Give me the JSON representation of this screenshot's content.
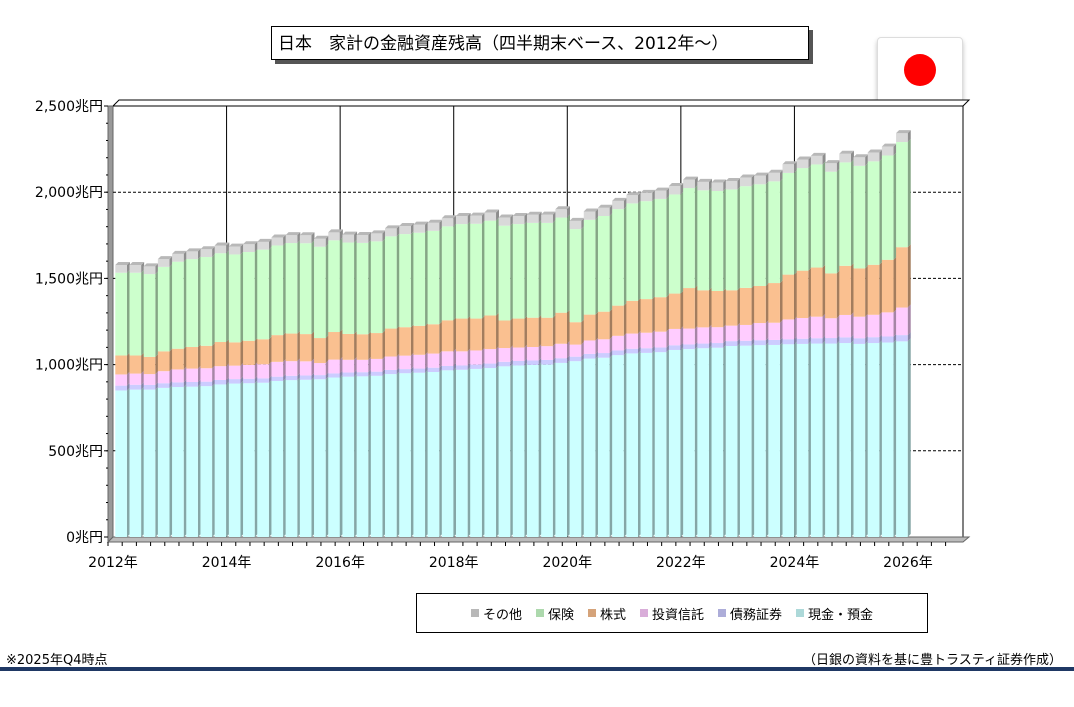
{
  "title": "日本　家計の金融資産残高（四半期末ベース、2012年～）",
  "note_left": "※2025年Q4時点",
  "note_right": "（日銀の資料を基に豊トラスティ証券作成）",
  "flag_icon": "japan-flag-icon",
  "chart_data": {
    "type": "bar",
    "stacked": true,
    "grid": true,
    "legend_position": "bottom",
    "y_ticks": [
      "0兆円",
      "500兆円",
      "1,000兆円",
      "1,500兆円",
      "2,000兆円",
      "2,500兆円"
    ],
    "ylim": [
      0,
      2500
    ],
    "x_ticks": [
      "2012年",
      "2014年",
      "2016年",
      "2018年",
      "2020年",
      "2022年",
      "2024年",
      "2026年"
    ],
    "categories": [
      "2012Q1",
      "2012Q2",
      "2012Q3",
      "2012Q4",
      "2013Q1",
      "2013Q2",
      "2013Q3",
      "2013Q4",
      "2014Q1",
      "2014Q2",
      "2014Q3",
      "2014Q4",
      "2015Q1",
      "2015Q2",
      "2015Q3",
      "2015Q4",
      "2016Q1",
      "2016Q2",
      "2016Q3",
      "2016Q4",
      "2017Q1",
      "2017Q2",
      "2017Q3",
      "2017Q4",
      "2018Q1",
      "2018Q2",
      "2018Q3",
      "2018Q4",
      "2019Q1",
      "2019Q2",
      "2019Q3",
      "2019Q4",
      "2020Q1",
      "2020Q2",
      "2020Q3",
      "2020Q4",
      "2021Q1",
      "2021Q2",
      "2021Q3",
      "2021Q4",
      "2022Q1",
      "2022Q2",
      "2022Q3",
      "2022Q4",
      "2023Q1",
      "2023Q2",
      "2023Q3",
      "2023Q4",
      "2024Q1",
      "2024Q2",
      "2024Q3",
      "2024Q4",
      "2025Q1",
      "2025Q2",
      "2025Q3",
      "2025Q4"
    ],
    "series": [
      {
        "name": "現金・預金",
        "color": "#ccffff",
        "values": [
          850,
          855,
          855,
          865,
          870,
          872,
          875,
          885,
          890,
          892,
          895,
          905,
          910,
          912,
          915,
          925,
          930,
          932,
          935,
          945,
          950,
          953,
          957,
          967,
          970,
          975,
          980,
          990,
          995,
          998,
          1000,
          1010,
          1020,
          1035,
          1040,
          1055,
          1065,
          1068,
          1072,
          1085,
          1090,
          1095,
          1098,
          1108,
          1110,
          1113,
          1114,
          1118,
          1120,
          1122,
          1122,
          1125,
          1120,
          1125,
          1128,
          1135
        ]
      },
      {
        "name": "債務証券",
        "color": "#ccccff",
        "values": [
          28,
          28,
          27,
          27,
          27,
          27,
          26,
          26,
          26,
          26,
          25,
          25,
          25,
          25,
          24,
          24,
          24,
          24,
          24,
          24,
          24,
          24,
          25,
          25,
          25,
          25,
          26,
          26,
          26,
          26,
          27,
          27,
          26,
          27,
          27,
          27,
          27,
          27,
          27,
          27,
          27,
          27,
          27,
          28,
          28,
          28,
          29,
          29,
          30,
          31,
          32,
          33,
          33,
          34,
          35,
          36
        ]
      },
      {
        "name": "投資信託",
        "color": "#ffccff",
        "values": [
          65,
          65,
          63,
          70,
          75,
          78,
          78,
          80,
          78,
          80,
          82,
          86,
          85,
          82,
          70,
          80,
          74,
          72,
          74,
          78,
          78,
          80,
          82,
          85,
          82,
          82,
          84,
          80,
          78,
          78,
          80,
          84,
          70,
          78,
          80,
          85,
          88,
          90,
          92,
          95,
          92,
          94,
          92,
          90,
          92,
          100,
          100,
          115,
          120,
          125,
          115,
          130,
          125,
          130,
          140,
          160
        ]
      },
      {
        "name": "株式",
        "color": "#fac090",
        "values": [
          110,
          105,
          100,
          115,
          120,
          125,
          130,
          140,
          135,
          140,
          145,
          155,
          160,
          158,
          145,
          160,
          150,
          148,
          150,
          162,
          165,
          168,
          170,
          180,
          190,
          185,
          195,
          160,
          168,
          170,
          165,
          180,
          130,
          150,
          160,
          175,
          190,
          195,
          200,
          205,
          235,
          215,
          210,
          205,
          215,
          215,
          230,
          260,
          275,
          285,
          260,
          285,
          280,
          290,
          305,
          350
        ]
      },
      {
        "name": "保険",
        "color": "#ccffcc",
        "values": [
          480,
          480,
          480,
          490,
          505,
          510,
          515,
          515,
          510,
          515,
          520,
          520,
          525,
          527,
          530,
          532,
          530,
          530,
          532,
          535,
          540,
          540,
          542,
          545,
          548,
          550,
          550,
          550,
          548,
          550,
          550,
          552,
          540,
          550,
          555,
          560,
          565,
          568,
          570,
          575,
          580,
          580,
          580,
          585,
          590,
          590,
          590,
          590,
          595,
          598,
          590,
          600,
          595,
          600,
          605,
          610
        ]
      },
      {
        "name": "その他",
        "color": "#d9d9d9",
        "values": [
          45,
          45,
          45,
          45,
          45,
          45,
          45,
          45,
          45,
          45,
          45,
          46,
          46,
          46,
          46,
          46,
          46,
          46,
          46,
          46,
          47,
          47,
          47,
          47,
          47,
          47,
          47,
          47,
          47,
          47,
          48,
          48,
          48,
          48,
          48,
          48,
          48,
          48,
          48,
          49,
          49,
          49,
          49,
          49,
          50,
          50,
          50,
          50,
          50,
          50,
          50,
          50,
          50,
          51,
          51,
          52
        ]
      }
    ]
  }
}
